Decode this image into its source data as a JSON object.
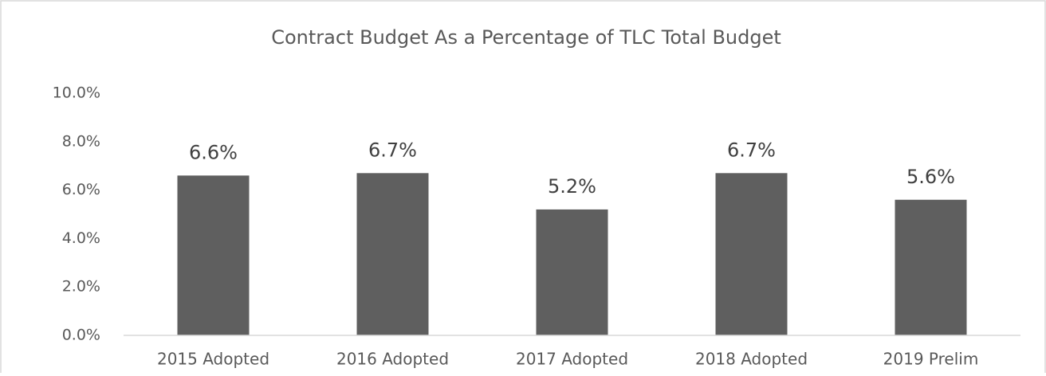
{
  "chart_data": {
    "type": "bar",
    "title": "Contract Budget As a Percentage of TLC Total Budget",
    "categories": [
      "2015 Adopted",
      "2016 Adopted",
      "2017 Adopted",
      "2018 Adopted",
      "2019 Prelim"
    ],
    "values": [
      6.6,
      6.7,
      5.2,
      6.7,
      5.6
    ],
    "value_labels": [
      "6.6%",
      "6.7%",
      "5.2%",
      "6.7%",
      "5.6%"
    ],
    "color": "#5f5f5f",
    "ylim": [
      0,
      10
    ],
    "yticks": [
      {
        "value": 0,
        "label": "0.0%"
      },
      {
        "value": 2,
        "label": "2.0%"
      },
      {
        "value": 4,
        "label": "4.0%"
      },
      {
        "value": 6,
        "label": "6.0%"
      },
      {
        "value": 8,
        "label": "8.0%"
      },
      {
        "value": 10,
        "label": "10.0%"
      }
    ],
    "grid": false
  }
}
